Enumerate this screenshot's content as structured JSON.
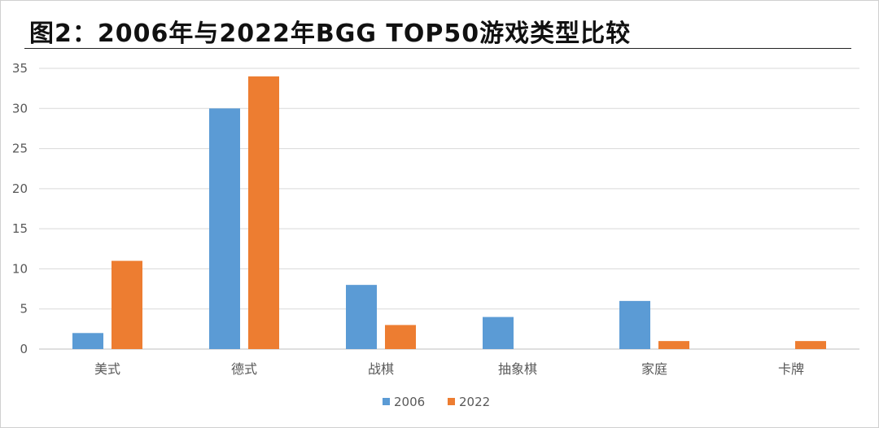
{
  "chart_data": {
    "type": "bar",
    "title": "图2：2006年与2022年BGG TOP50游戏类型比较",
    "categories": [
      "美式",
      "德式",
      "战棋",
      "抽象棋",
      "家庭",
      "卡牌"
    ],
    "series": [
      {
        "name": "2006",
        "values": [
          2,
          30,
          8,
          4,
          6,
          0
        ],
        "color": "#5b9bd5"
      },
      {
        "name": "2022",
        "values": [
          11,
          34,
          3,
          0,
          1,
          1
        ],
        "color": "#ed7d31"
      }
    ],
    "ylim": [
      0,
      35
    ],
    "yticks": [
      0,
      5,
      10,
      15,
      20,
      25,
      30,
      35
    ],
    "grid": true,
    "legend": "bottom"
  }
}
